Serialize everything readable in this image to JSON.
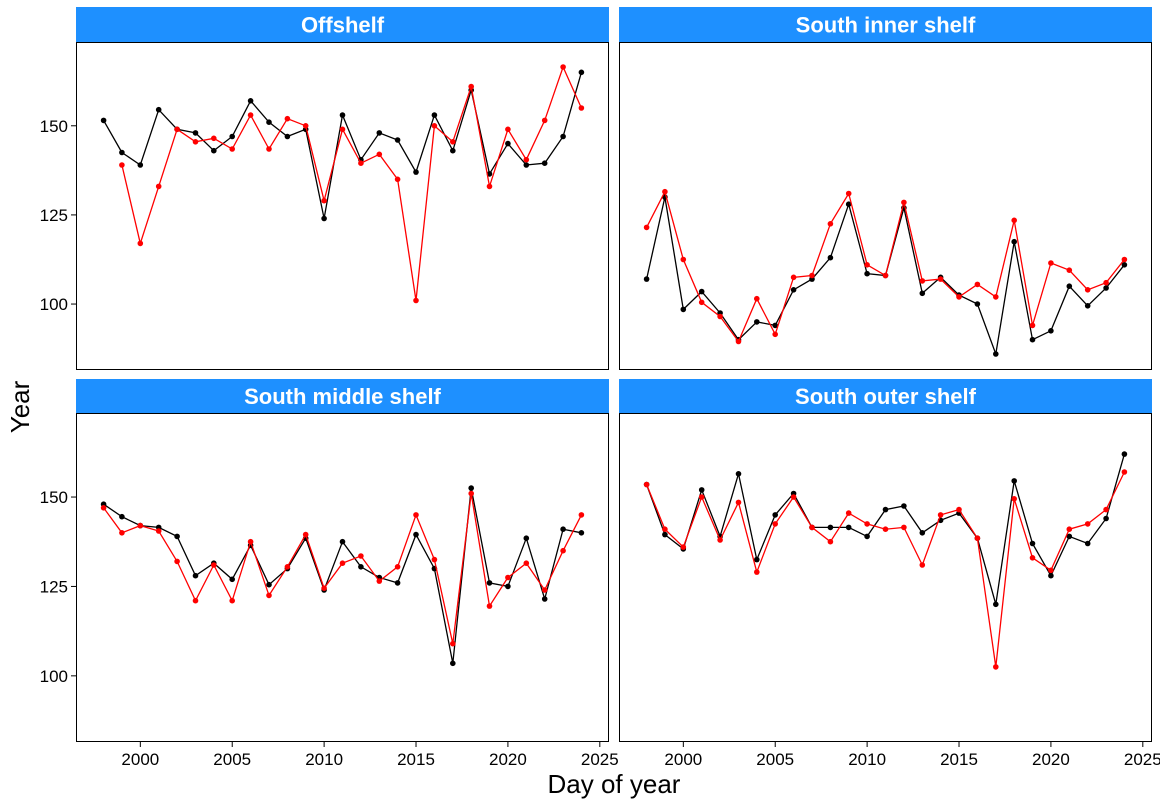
{
  "chart_data": {
    "type": "line",
    "xlabel": "Day of year",
    "ylabel": "Year",
    "xlim": [
      1996.5,
      2025.5
    ],
    "ylim": [
      81.5,
      173.5
    ],
    "x_ticks": [
      2000,
      2005,
      2010,
      2015,
      2020,
      2025
    ],
    "y_ticks": [
      100,
      125,
      150
    ],
    "colors": {
      "series_black": "#000000",
      "series_red": "#ff0000",
      "strip": "#1e90ff"
    },
    "legend": "none",
    "grid": false,
    "panels": [
      {
        "title": "Offshelf",
        "series": [
          {
            "color": "#000000",
            "x": [
              1998,
              1999,
              2000,
              2001,
              2002,
              2003,
              2004,
              2005,
              2006,
              2007,
              2008,
              2009,
              2010,
              2011,
              2012,
              2013,
              2014,
              2015,
              2016,
              2017,
              2018,
              2019,
              2020,
              2021,
              2022,
              2023,
              2024
            ],
            "values": [
              151.5,
              142.5,
              139,
              154.5,
              149,
              148,
              143,
              147,
              157,
              151,
              147,
              149,
              124,
              153,
              140.5,
              148,
              146,
              137,
              153,
              143,
              160,
              136.5,
              145,
              139,
              139.5,
              147,
              165
            ]
          },
          {
            "color": "#ff0000",
            "x": [
              1999,
              2000,
              2001,
              2002,
              2003,
              2004,
              2005,
              2006,
              2007,
              2008,
              2009,
              2010,
              2011,
              2012,
              2013,
              2014,
              2015,
              2016,
              2017,
              2018,
              2019,
              2020,
              2021,
              2022,
              2023,
              2024
            ],
            "values": [
              139,
              117,
              133,
              149,
              145.5,
              146.5,
              143.5,
              153,
              143.5,
              152,
              150,
              129,
              149,
              139.5,
              142,
              135,
              101,
              150,
              145.5,
              161,
              133,
              149,
              140.5,
              151.5,
              166.5,
              155
            ]
          }
        ]
      },
      {
        "title": "South inner shelf",
        "series": [
          {
            "color": "#000000",
            "x": [
              1998,
              1999,
              2000,
              2001,
              2002,
              2003,
              2004,
              2005,
              2006,
              2007,
              2008,
              2009,
              2010,
              2011,
              2012,
              2013,
              2014,
              2015,
              2016,
              2017,
              2018,
              2019,
              2020,
              2021,
              2022,
              2023,
              2024
            ],
            "values": [
              107,
              130,
              98.5,
              103.5,
              97.5,
              90,
              95,
              94,
              104,
              107,
              113,
              128,
              108.5,
              108,
              127,
              103,
              107.5,
              102.5,
              100,
              86,
              117.5,
              90,
              92.5,
              105,
              99.5,
              104.5,
              111
            ]
          },
          {
            "color": "#ff0000",
            "x": [
              1998,
              1999,
              2000,
              2001,
              2002,
              2003,
              2004,
              2005,
              2006,
              2007,
              2008,
              2009,
              2010,
              2011,
              2012,
              2013,
              2014,
              2015,
              2016,
              2017,
              2018,
              2019,
              2020,
              2021,
              2022,
              2023,
              2024
            ],
            "values": [
              121.5,
              131.5,
              112.5,
              100.5,
              96.5,
              89.5,
              101.5,
              91.5,
              107.5,
              108,
              122.5,
              131,
              111,
              108,
              128.5,
              106.5,
              107,
              102,
              105.5,
              102,
              123.5,
              94,
              111.5,
              109.5,
              104,
              106,
              112.5
            ]
          }
        ]
      },
      {
        "title": "South middle shelf",
        "series": [
          {
            "color": "#000000",
            "x": [
              1998,
              1999,
              2000,
              2001,
              2002,
              2003,
              2004,
              2005,
              2006,
              2007,
              2008,
              2009,
              2010,
              2011,
              2012,
              2013,
              2014,
              2015,
              2016,
              2017,
              2018,
              2019,
              2020,
              2021,
              2022,
              2023,
              2024
            ],
            "values": [
              148,
              144.5,
              142,
              141.5,
              139,
              128,
              131.5,
              127,
              136.5,
              125.5,
              130,
              138.5,
              124,
              137.5,
              130.5,
              127.5,
              126,
              139.5,
              130,
              103.5,
              152.5,
              126,
              125,
              138.5,
              121.5,
              141,
              140
            ]
          },
          {
            "color": "#ff0000",
            "x": [
              1998,
              1999,
              2000,
              2001,
              2002,
              2003,
              2004,
              2005,
              2006,
              2007,
              2008,
              2009,
              2010,
              2011,
              2012,
              2013,
              2014,
              2015,
              2016,
              2017,
              2018,
              2019,
              2020,
              2021,
              2022,
              2023,
              2024
            ],
            "values": [
              147,
              140,
              142,
              140.5,
              132,
              121,
              131,
              121,
              137.5,
              122.5,
              130.5,
              139.5,
              124.5,
              131.5,
              133.5,
              126.5,
              130.5,
              145,
              132.5,
              109,
              151,
              119.5,
              127.5,
              131.5,
              124,
              135,
              145
            ]
          }
        ]
      },
      {
        "title": "South outer shelf",
        "series": [
          {
            "color": "#000000",
            "x": [
              1998,
              1999,
              2000,
              2001,
              2002,
              2003,
              2004,
              2005,
              2006,
              2007,
              2008,
              2009,
              2010,
              2011,
              2012,
              2013,
              2014,
              2015,
              2016,
              2017,
              2018,
              2019,
              2020,
              2021,
              2022,
              2023,
              2024
            ],
            "values": [
              153.5,
              139.5,
              135.5,
              152,
              139,
              156.5,
              132.5,
              145,
              151,
              141.5,
              141.5,
              141.5,
              139,
              146.5,
              147.5,
              140,
              143.5,
              145.5,
              138.5,
              120,
              154.5,
              137,
              128,
              139,
              137,
              144,
              162
            ]
          },
          {
            "color": "#ff0000",
            "x": [
              1998,
              1999,
              2000,
              2001,
              2002,
              2003,
              2004,
              2005,
              2006,
              2007,
              2008,
              2009,
              2010,
              2011,
              2012,
              2013,
              2014,
              2015,
              2016,
              2017,
              2018,
              2019,
              2020,
              2021,
              2022,
              2023,
              2024
            ],
            "values": [
              153.5,
              141,
              136,
              150,
              138,
              148.5,
              129,
              142.5,
              150,
              141.5,
              137.5,
              145.5,
              142.5,
              141,
              141.5,
              131,
              145,
              146.5,
              138.5,
              102.5,
              149.5,
              133,
              129.5,
              141,
              142.5,
              146.5,
              157
            ]
          }
        ]
      }
    ]
  }
}
